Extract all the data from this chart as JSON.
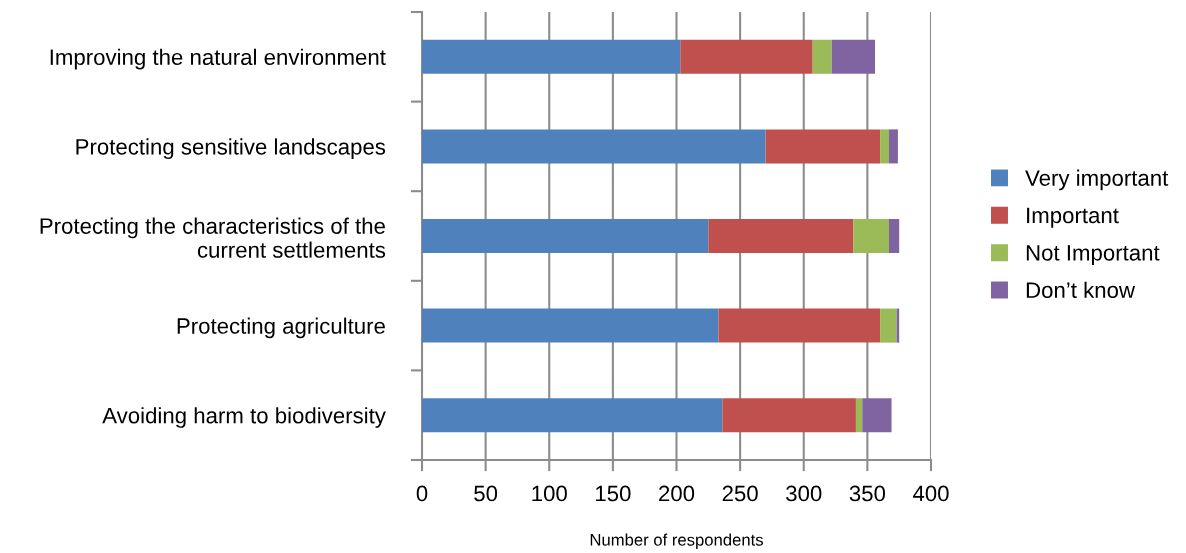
{
  "chart_data": {
    "type": "bar",
    "orientation": "horizontal",
    "stacked": true,
    "xlabel": "Number of respondents",
    "categories": [
      "Improving the natural environment",
      "Protecting sensitive landscapes",
      "Protecting the characteristics of the current settlements",
      "Protecting agriculture",
      "Avoiding harm to biodiversity"
    ],
    "series": [
      {
        "name": "Very important",
        "color": "#4f81bd",
        "values": [
          203,
          270,
          225,
          233,
          236
        ]
      },
      {
        "name": "Important",
        "color": "#c0504d",
        "values": [
          104,
          90,
          114,
          127,
          105
        ]
      },
      {
        "name": "Not Important",
        "color": "#9bbb59",
        "values": [
          15,
          7,
          28,
          13,
          5
        ]
      },
      {
        "name": "Don’t know",
        "color": "#8064a2",
        "values": [
          34,
          7,
          8,
          2,
          23
        ]
      }
    ],
    "xlim": [
      0,
      400
    ],
    "xticks": [
      0,
      50,
      100,
      150,
      200,
      250,
      300,
      350,
      400
    ],
    "grid": "x",
    "legend": "right"
  }
}
